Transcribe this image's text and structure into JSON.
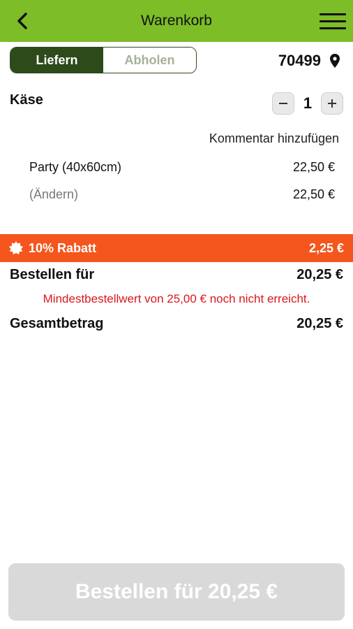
{
  "header": {
    "title": "Warenkorb"
  },
  "delivery_toggle": {
    "deliver_label": "Liefern",
    "pickup_label": "Abholen"
  },
  "location": {
    "zip": "70499"
  },
  "item": {
    "name": "Käse",
    "quantity": "1",
    "comment_link": "Kommentar hinzufügen",
    "size_label": "Party (40x60cm)",
    "size_price": "22,50 €",
    "change_label": "(Ändern)",
    "change_price": "22,50 €"
  },
  "discount": {
    "label": "10% Rabatt",
    "amount": "2,25 €"
  },
  "summary": {
    "order_for_label": "Bestellen für",
    "order_for_amount": "20,25 €",
    "min_order_warning": "Mindestbestellwert von 25,00 € noch nicht erreicht.",
    "total_label": "Gesamtbetrag",
    "total_amount": "20,25 €"
  },
  "order_button": {
    "label": "Bestellen für 20,25 €"
  },
  "colors": {
    "header_green": "#7cbd28",
    "toggle_dark": "#2d4a1a",
    "discount_orange": "#f4561d",
    "warning_red": "#d8171e",
    "button_disabled": "#d9d9d9"
  }
}
